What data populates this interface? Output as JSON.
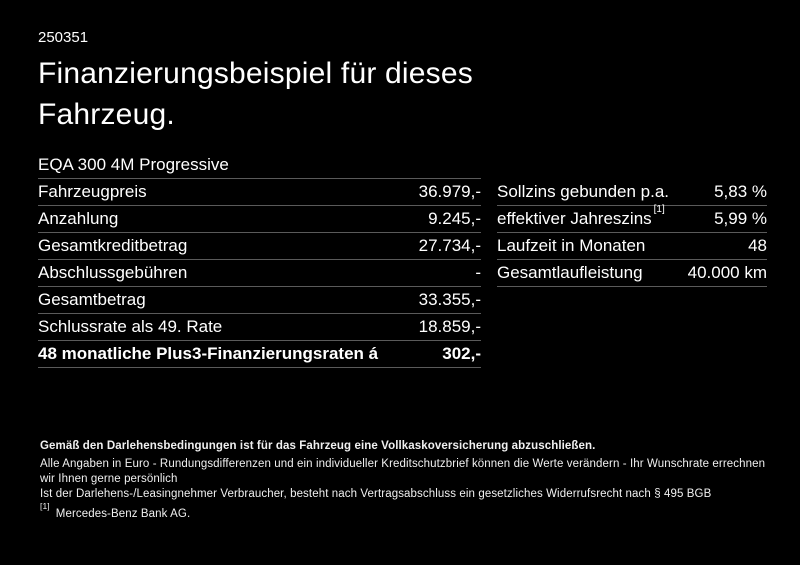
{
  "page": {
    "offer_number": "250351",
    "title": "Finanzierungsbeispiel für dieses Fahrzeug.",
    "vehicle_model": "EQA 300 4M Progressive"
  },
  "finance_table": {
    "rows": [
      {
        "label": "Fahrzeugpreis",
        "value": "36.979,-"
      },
      {
        "label": "Anzahlung",
        "value": "9.245,-"
      },
      {
        "label": "Gesamtkreditbetrag",
        "value": "27.734,-"
      },
      {
        "label": "Abschlussgebühren",
        "value": "-"
      },
      {
        "label": "Gesamtbetrag",
        "value": "33.355,-"
      },
      {
        "label": "Schlussrate als 49. Rate",
        "value": "18.859,-"
      },
      {
        "label": "48 monatliche Plus3-Finanzierungsraten á",
        "value": "302,-",
        "bold": true
      }
    ]
  },
  "conditions_table": {
    "rows": [
      {
        "label": "Sollzins gebunden p.a.",
        "value": "5,83 %"
      },
      {
        "label": "effektiver Jahreszins",
        "label_superscript": "[1]",
        "value": "5,99 %"
      },
      {
        "label": "Laufzeit in Monaten",
        "value": "48"
      },
      {
        "label": "Gesamtlaufleistung",
        "value": "40.000 km"
      }
    ]
  },
  "fine_print": {
    "insurance_note": "Gemäß den Darlehensbedingungen ist für das Fahrzeug eine Vollkaskoversicherung abzuschließen.",
    "general_note": "Alle Angaben in Euro - Rundungsdifferenzen und ein individueller Kreditschutzbrief können die Werte verändern - Ihr Wunschrate errechnen wir Ihnen gerne persönlich",
    "withdrawal_note": "Ist der Darlehens-/Leasingnehmer Verbraucher, besteht nach Vertragsabschluss ein gesetzliches Widerrufsrecht nach § 495 BGB",
    "footnote_marker": "[1]",
    "footnote_text": "Mercedes-Benz Bank AG."
  },
  "colors": {
    "background": "#000000",
    "text": "#ffffff",
    "separator": "#5a5a5a"
  }
}
